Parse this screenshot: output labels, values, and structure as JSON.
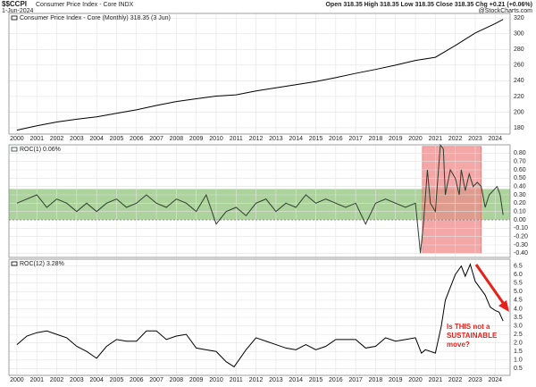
{
  "header": {
    "symbol": "$$CCPI",
    "name": "Consumer Price Index - Core INDX",
    "date": "1-Jun-2024",
    "quote": "Open 318.35 High 318.35 Low 318.35 Close 318.35 Chg +0.21 (+0.06%)",
    "credit": "@StockCharts.com"
  },
  "chart_data": [
    {
      "type": "line",
      "title": "Consumer Price Index - Core (Monthly) 318.35 (3 Jun)",
      "color": "#000000",
      "grid": true,
      "x_labels": true,
      "x": [
        2000,
        2001,
        2002,
        2003,
        2004,
        2005,
        2006,
        2007,
        2008,
        2009,
        2010,
        2011,
        2012,
        2013,
        2014,
        2015,
        2016,
        2017,
        2018,
        2019,
        2020,
        2021,
        2022,
        2023,
        2024,
        2024.4
      ],
      "values": [
        177,
        182.6,
        187.4,
        191,
        194,
        198.5,
        203,
        208.5,
        213.5,
        217,
        220.5,
        222,
        227,
        231,
        235,
        239,
        244,
        249.5,
        254.5,
        260,
        266,
        270,
        285,
        301,
        313,
        318.35
      ],
      "xlim": [
        1999.6,
        2024.75
      ],
      "xticks": [
        2000,
        2001,
        2002,
        2003,
        2004,
        2005,
        2006,
        2007,
        2008,
        2009,
        2010,
        2011,
        2012,
        2013,
        2014,
        2015,
        2016,
        2017,
        2018,
        2019,
        2020,
        2021,
        2022,
        2023,
        2024
      ],
      "ylim": [
        172,
        326
      ],
      "yticks": [
        180,
        200,
        220,
        240,
        260,
        280,
        300,
        320
      ]
    },
    {
      "type": "line",
      "title": "ROC(1) 0.06%",
      "color": "#2f3f2f",
      "grid": true,
      "x_labels": false,
      "reference_line": 0,
      "bands": [
        {
          "ylim": [
            0,
            0.37
          ],
          "color": "#8fc47a"
        },
        {
          "xlim": [
            2020.35,
            2023.3
          ],
          "ylim": [
            -0.4,
            0.88
          ],
          "color": "#ef8a8a"
        }
      ],
      "x": [
        2000,
        2000.5,
        2001,
        2001.5,
        2002,
        2002.5,
        2003,
        2003.5,
        2004,
        2004.5,
        2005,
        2005.5,
        2006,
        2006.5,
        2007,
        2007.5,
        2008,
        2008.5,
        2009,
        2009.5,
        2010,
        2010.5,
        2011,
        2011.5,
        2012,
        2012.5,
        2013,
        2013.5,
        2014,
        2014.5,
        2015,
        2015.5,
        2016,
        2016.5,
        2017,
        2017.5,
        2018,
        2018.5,
        2019,
        2019.5,
        2020,
        2020.25,
        2020.4,
        2020.6,
        2020.75,
        2021,
        2021.25,
        2021.4,
        2021.5,
        2021.75,
        2022,
        2022.2,
        2022.3,
        2022.5,
        2022.7,
        2022.9,
        2023.1,
        2023.3,
        2023.5,
        2023.7,
        2023.9,
        2024.1,
        2024.25,
        2024.4
      ],
      "values": [
        0.2,
        0.25,
        0.3,
        0.15,
        0.25,
        0.2,
        0.1,
        0.2,
        0.1,
        0.2,
        0.25,
        0.15,
        0.2,
        0.3,
        0.2,
        0.15,
        0.25,
        0.2,
        0.1,
        0.3,
        -0.05,
        0.1,
        0.15,
        0.05,
        0.2,
        0.25,
        0.1,
        0.2,
        0.15,
        0.3,
        0.2,
        0.25,
        0.2,
        0.15,
        0.2,
        -0.05,
        0.2,
        0.25,
        0.2,
        0.15,
        0.2,
        -0.4,
        -0.05,
        0.6,
        0.2,
        0.1,
        0.9,
        0.85,
        0.3,
        0.6,
        0.5,
        0.3,
        0.6,
        0.35,
        0.55,
        0.4,
        0.45,
        0.4,
        0.15,
        0.3,
        0.35,
        0.4,
        0.3,
        0.06
      ],
      "xlim": [
        1999.6,
        2024.75
      ],
      "xticks": [
        2000,
        2001,
        2002,
        2003,
        2004,
        2005,
        2006,
        2007,
        2008,
        2009,
        2010,
        2011,
        2012,
        2013,
        2014,
        2015,
        2016,
        2017,
        2018,
        2019,
        2020,
        2021,
        2022,
        2023,
        2024
      ],
      "ylim": [
        -0.45,
        0.9
      ],
      "yticks": [
        {
          "value": 0.8,
          "label": "0.80"
        },
        {
          "value": 0.7,
          "label": "0.70"
        },
        {
          "value": 0.6,
          "label": "0.60"
        },
        {
          "value": 0.5,
          "label": "0.50"
        },
        {
          "value": 0.4,
          "label": "0.40"
        },
        {
          "value": 0.3,
          "label": "0.30"
        },
        {
          "value": 0.2,
          "label": "0.20"
        },
        {
          "value": 0.1,
          "label": "0.10"
        },
        {
          "value": 0,
          "label": "0.00"
        },
        {
          "value": -0.1,
          "label": "-0.10"
        },
        {
          "value": -0.2,
          "label": "-0.20"
        },
        {
          "value": -0.3,
          "label": "-0.30"
        },
        {
          "value": -0.4,
          "label": "-0.40"
        }
      ]
    },
    {
      "type": "line",
      "title": "ROC(12) 3.28%",
      "color": "#000000",
      "grid": true,
      "x_labels": true,
      "annotation": [
        "Is THIS not a",
        "SUSTAINABLE",
        "move?"
      ],
      "annotation_color": "#e8201a",
      "x": [
        2000,
        2000.5,
        2001,
        2001.5,
        2002,
        2002.5,
        2003,
        2003.5,
        2004,
        2004.5,
        2005,
        2005.5,
        2006,
        2006.5,
        2007,
        2007.5,
        2008,
        2008.5,
        2009,
        2009.5,
        2010,
        2010.5,
        2010.9,
        2011.5,
        2012,
        2012.5,
        2013,
        2013.5,
        2014,
        2014.5,
        2015,
        2015.5,
        2016,
        2016.5,
        2017,
        2017.5,
        2018,
        2018.5,
        2019,
        2019.5,
        2020,
        2020.3,
        2020.5,
        2021,
        2021.3,
        2021.5,
        2022,
        2022.3,
        2022.5,
        2022.75,
        2023,
        2023.5,
        2023.75,
        2024,
        2024.2,
        2024.4
      ],
      "values": [
        1.9,
        2.4,
        2.6,
        2.7,
        2.5,
        2.3,
        1.8,
        1.5,
        1.1,
        1.8,
        2.2,
        2.1,
        2.1,
        2.7,
        2.7,
        2.2,
        2.4,
        2.5,
        1.7,
        1.6,
        1.5,
        0.9,
        0.6,
        1.6,
        2.3,
        2.1,
        1.9,
        1.7,
        1.6,
        1.9,
        1.6,
        1.8,
        2.2,
        2.2,
        2.2,
        1.7,
        1.8,
        2.3,
        2.1,
        2.2,
        2.3,
        1.4,
        1.6,
        1.4,
        3.0,
        4.5,
        6.0,
        6.5,
        5.9,
        6.6,
        5.6,
        4.8,
        4.1,
        3.9,
        3.8,
        3.28
      ],
      "xlim": [
        1999.6,
        2024.75
      ],
      "xticks": [
        2000,
        2001,
        2002,
        2003,
        2004,
        2005,
        2006,
        2007,
        2008,
        2009,
        2010,
        2011,
        2012,
        2013,
        2014,
        2015,
        2016,
        2017,
        2018,
        2019,
        2020,
        2021,
        2022,
        2023,
        2024
      ],
      "ylim": [
        0.1,
        6.9
      ],
      "yticks": [
        6.5,
        {
          "value": 6,
          "label": "6.0"
        },
        5.5,
        {
          "value": 5,
          "label": "5.0"
        },
        4.5,
        {
          "value": 4,
          "label": "4.0"
        },
        3.5,
        {
          "value": 3,
          "label": "3.0"
        },
        2.5,
        {
          "value": 2,
          "label": "2.0"
        },
        1.5,
        {
          "value": 1,
          "label": "1.0"
        },
        0.5
      ]
    }
  ]
}
